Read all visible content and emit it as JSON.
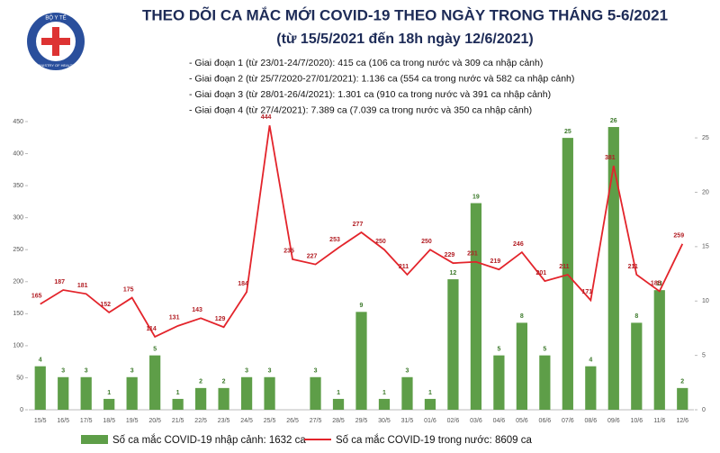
{
  "chart_data": {
    "type": "bar-line",
    "logo_top": "BỘ Y TẾ",
    "logo_bottom": "MINISTRY OF HEALTH",
    "title": "THEO DÕI CA MẮC MỚI COVID-19 THEO NGÀY TRONG THÁNG 5-6/2021",
    "subtitle": "(từ 15/5/2021 đến 18h ngày 12/6/2021)",
    "notes": [
      "- Giai đoạn 1 (từ 23/01-24/7/2020): 415 ca (106 ca trong nước và 309 ca nhập cảnh)",
      "- Giai đoạn 2 (từ 25/7/2020-27/01/2021): 1.136 ca (554 ca trong nước và 582 ca nhập cảnh)",
      "- Giai đoạn 3 (từ 28/01-26/4/2021): 1.301 ca (910 ca trong nước và 391 ca nhập cảnh)",
      "- Giai đoạn 4 (từ 27/4/2021): 7.389 ca (7.039 ca trong nước và 350 ca nhập cảnh)"
    ],
    "categories": [
      "15/5",
      "16/5",
      "17/5",
      "18/5",
      "19/5",
      "20/5",
      "21/5",
      "22/5",
      "23/5",
      "24/5",
      "25/5",
      "26/5",
      "27/5",
      "28/5",
      "29/5",
      "30/5",
      "31/5",
      "01/6",
      "02/6",
      "03/6",
      "04/6",
      "05/6",
      "06/6",
      "07/6",
      "08/6",
      "09/6",
      "10/6",
      "11/6",
      "12/6"
    ],
    "series": [
      {
        "name": "Số ca mắc COVID-19 nhập cảnh: 1632 ca",
        "type": "bar",
        "axis": "y2",
        "color": "#5e9e48",
        "values": [
          4,
          3,
          3,
          1,
          3,
          5,
          1,
          2,
          2,
          3,
          3,
          null,
          3,
          1,
          9,
          1,
          3,
          1,
          12,
          19,
          5,
          8,
          5,
          25,
          4,
          26,
          8,
          11,
          2
        ]
      },
      {
        "name": "Số ca mắc COVID-19 trong nước: 8609 ca",
        "type": "line",
        "color": "#e3242b",
        "values": [
          165,
          187,
          181,
          152,
          175,
          114,
          131,
          143,
          129,
          184,
          444,
          235,
          227,
          253,
          277,
          250,
          211,
          250,
          229,
          231,
          219,
          246,
          201,
          211,
          171,
          381,
          211,
          185,
          259
        ]
      }
    ],
    "ylim": [
      0,
      450
    ],
    "yticks": [
      0,
      50,
      100,
      150,
      200,
      250,
      300,
      350,
      400,
      450
    ],
    "y2lim": [
      0,
      26.5
    ],
    "y2ticks": [
      0,
      5,
      10,
      15,
      20,
      25
    ]
  }
}
